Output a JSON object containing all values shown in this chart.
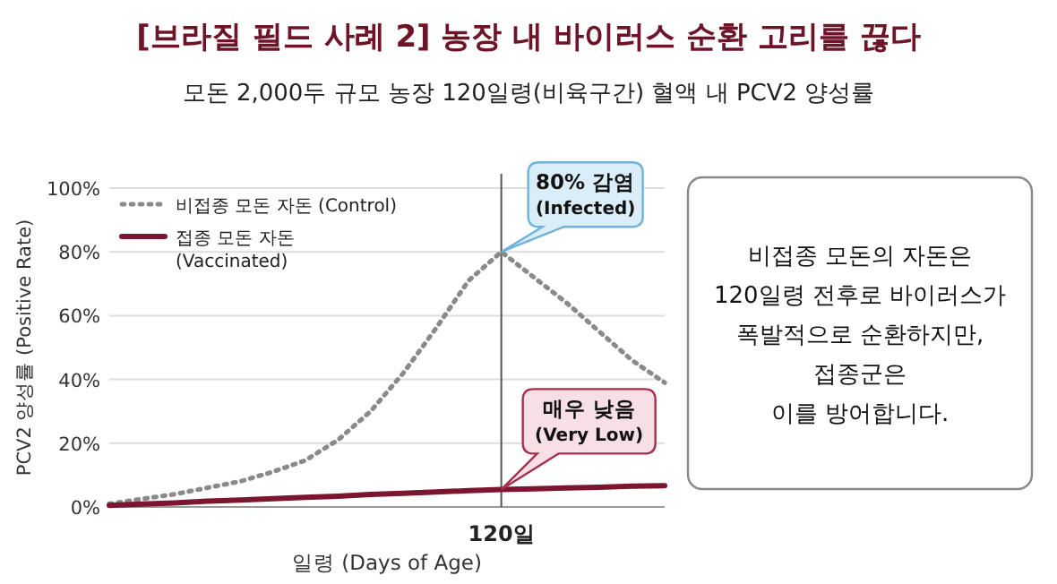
{
  "chart_data": {
    "type": "line",
    "title": "[브라질 필드 사례 2] 농장 내 바이러스 순환 고리를 끊다",
    "subtitle": "모돈 2,000두 규모 농장 120일령(비육구간) 혈액 내 PCV2 양성률",
    "xlabel": "일령 (Days of Age)",
    "ylabel": "PCV2 양성률 (Positive Rate)",
    "categories": [
      null,
      null,
      null,
      null,
      null,
      null,
      null,
      null,
      null,
      null,
      null,
      null,
      "120일",
      null,
      null,
      null,
      null,
      null
    ],
    "ylim": [
      0,
      100
    ],
    "yticks": [
      {
        "value": 0,
        "label": "0%"
      },
      {
        "value": 20,
        "label": "20%"
      },
      {
        "value": 40,
        "label": "40%"
      },
      {
        "value": 60,
        "label": "60%"
      },
      {
        "value": 80,
        "label": "80%"
      },
      {
        "value": 100,
        "label": "100%"
      }
    ],
    "grid": "y",
    "legend": "top left",
    "series": [
      {
        "name": "비접종 모돈 자돈 (Control)",
        "color": "#8a8a8a",
        "line_style": "dotted",
        "values": [
          1,
          2.5,
          4,
          6,
          8,
          11,
          14.6,
          21,
          30,
          42,
          56,
          71,
          80,
          72,
          64,
          55,
          46,
          39
        ]
      },
      {
        "name": "접종 모돈 자돈\n(Vaccinated)",
        "color": "#7b1530",
        "line_style": "solid",
        "values": [
          0.5,
          0.9,
          1.3,
          1.8,
          2.2,
          2.6,
          3,
          3.4,
          3.9,
          4.3,
          4.7,
          5.1,
          5.5,
          5.7,
          6,
          6.2,
          6.5,
          6.7
        ]
      }
    ],
    "ref_lines": [
      {
        "axis": "x",
        "value": "120일",
        "color": "#555555"
      }
    ],
    "annotations": [
      {
        "text": "80% 감염\n(Infected)",
        "x": "120일",
        "y": 80
      },
      {
        "text": "매우 낮음\n(Very Low)",
        "x": "120일",
        "y": 5.5
      },
      "비접종 모돈의 자돈은\n120일령 전후로 바이러스가\n폭발적으로 순환하지만,\n접종군은\n이를 방어합니다."
    ]
  }
}
